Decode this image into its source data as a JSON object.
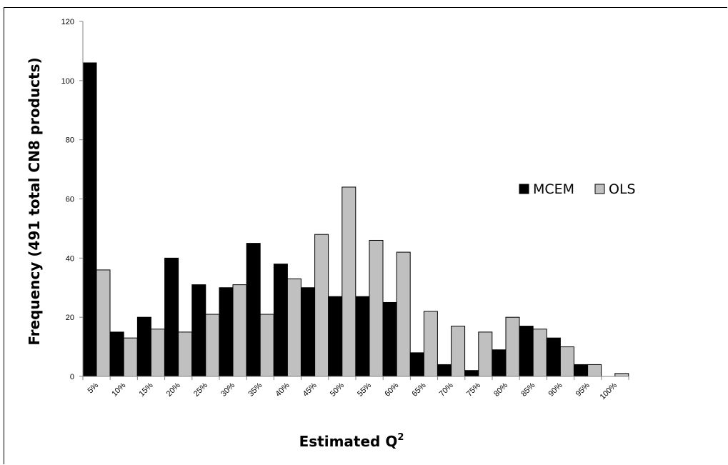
{
  "chart_data": {
    "type": "bar",
    "title": "",
    "xlabel": "Estimated Q",
    "xlabel_superscript": "2",
    "ylabel": "Frequency (491 total CN8 products)",
    "ylim": [
      0,
      120
    ],
    "yticks": [
      0,
      20,
      40,
      60,
      80,
      100,
      120
    ],
    "grid": false,
    "legend_position": "right",
    "categories": [
      "5%",
      "10%",
      "15%",
      "20%",
      "25%",
      "30%",
      "35%",
      "40%",
      "45%",
      "50%",
      "55%",
      "60%",
      "65%",
      "70%",
      "75%",
      "80%",
      "85%",
      "90%",
      "95%",
      "100%"
    ],
    "series": [
      {
        "name": "MCEM",
        "color": "#000000",
        "values": [
          106,
          15,
          20,
          40,
          31,
          30,
          45,
          38,
          30,
          27,
          27,
          25,
          8,
          4,
          2,
          9,
          17,
          13,
          4,
          0
        ]
      },
      {
        "name": "OLS",
        "color": "#c0c0c0",
        "values": [
          36,
          13,
          16,
          15,
          21,
          31,
          21,
          33,
          48,
          64,
          46,
          42,
          22,
          17,
          15,
          20,
          16,
          10,
          4,
          1
        ]
      }
    ]
  }
}
